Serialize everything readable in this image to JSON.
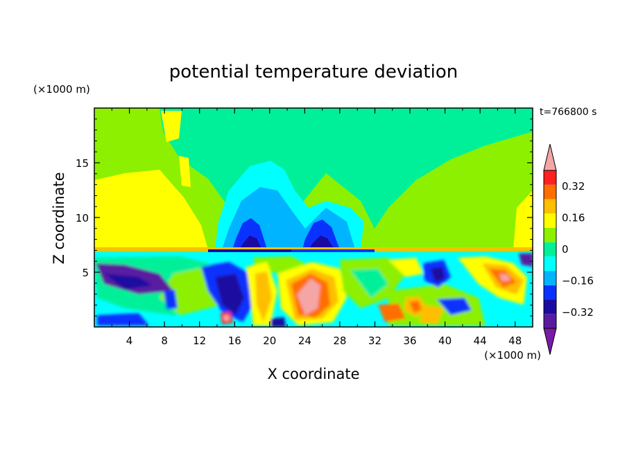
{
  "chart_data": {
    "type": "heatmap",
    "title": "potential temperature deviation",
    "xlabel": "X coordinate",
    "ylabel": "Z coordinate",
    "x_unit": "(×1000 m)",
    "y_unit": "(×1000 m)",
    "time_label": "t=766800 s",
    "xlim": [
      0,
      50
    ],
    "ylim": [
      0,
      20
    ],
    "x_ticks": [
      4,
      8,
      12,
      16,
      20,
      24,
      28,
      32,
      36,
      40,
      44,
      48
    ],
    "y_ticks": [
      5,
      10,
      15
    ],
    "colorbar": {
      "tick_labels": [
        "0.32",
        "0.16",
        "0",
        "−0.16",
        "−0.32"
      ],
      "tick_values": [
        0.32,
        0.16,
        0,
        -0.16,
        -0.32
      ],
      "levels": [
        -0.48,
        -0.4,
        -0.32,
        -0.24,
        -0.16,
        -0.08,
        0,
        0.08,
        0.16,
        0.24,
        0.32,
        0.4,
        0.48
      ],
      "colors": [
        "#7a1aa8",
        "#5a1aa0",
        "#1a0aa0",
        "#0a32ff",
        "#00b4ff",
        "#00ffff",
        "#00f09a",
        "#8cf000",
        "#ffff00",
        "#ffbe00",
        "#ff6e00",
        "#ff2020",
        "#f4a6a6"
      ]
    }
  }
}
